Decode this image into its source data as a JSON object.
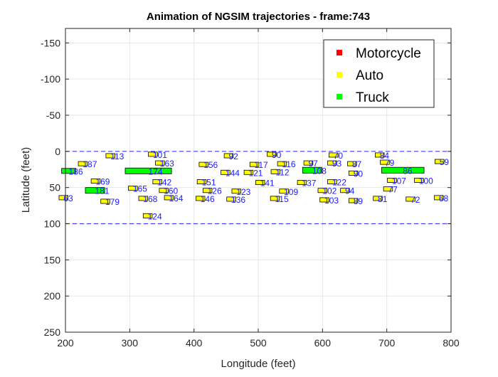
{
  "chart_data": {
    "type": "scatter",
    "title": "Animation of NGSIM trajectories - frame:743",
    "xlabel": "Longitude (feet)",
    "ylabel": "Latitude (feet)",
    "xlim": [
      200,
      800
    ],
    "ylim": [
      -170,
      250
    ],
    "y_direction": "reversed",
    "x_ticks": [
      200,
      300,
      400,
      500,
      600,
      700,
      800
    ],
    "y_ticks": [
      -150,
      -100,
      -50,
      0,
      50,
      100,
      150,
      200,
      250
    ],
    "x_tick_labels": [
      "200",
      "300",
      "400",
      "500",
      "600",
      "700",
      "800"
    ],
    "y_tick_labels": [
      "-150",
      "-100",
      "-50",
      "0",
      "50",
      "100",
      "150",
      "200",
      "250"
    ],
    "grid": true,
    "legend_position": "top-right",
    "lane_boundaries": [
      0,
      100
    ],
    "boundary_color": "#4040ff",
    "label_color": "#1a1aff",
    "legend": [
      {
        "label": "Motorcycle",
        "color": "#ff0000"
      },
      {
        "label": "Auto",
        "color": "#ffff00"
      },
      {
        "label": "Truck",
        "color": "#00ff00"
      }
    ],
    "vehicles": [
      {
        "id": "113",
        "type": "Auto",
        "x": 270,
        "y": 6,
        "len": 14,
        "wid": 6
      },
      {
        "id": "101",
        "type": "Auto",
        "x": 336,
        "y": 4,
        "len": 14,
        "wid": 6
      },
      {
        "id": "92",
        "type": "Auto",
        "x": 454,
        "y": 6,
        "len": 14,
        "wid": 6
      },
      {
        "id": "90",
        "type": "Auto",
        "x": 521,
        "y": 4,
        "len": 14,
        "wid": 6
      },
      {
        "id": "70",
        "type": "Auto",
        "x": 617,
        "y": 5,
        "len": 14,
        "wid": 6
      },
      {
        "id": "84",
        "type": "Auto",
        "x": 689,
        "y": 5,
        "len": 14,
        "wid": 6
      },
      {
        "id": "187",
        "type": "Auto",
        "x": 227,
        "y": 17,
        "len": 14,
        "wid": 6
      },
      {
        "id": "163",
        "type": "Auto",
        "x": 347,
        "y": 16,
        "len": 14,
        "wid": 6
      },
      {
        "id": "156",
        "type": "Auto",
        "x": 415,
        "y": 18,
        "len": 14,
        "wid": 6
      },
      {
        "id": "117",
        "type": "Auto",
        "x": 494,
        "y": 18,
        "len": 14,
        "wid": 6
      },
      {
        "id": "116",
        "type": "Auto",
        "x": 537,
        "y": 17,
        "len": 14,
        "wid": 6
      },
      {
        "id": "97",
        "type": "Auto",
        "x": 578,
        "y": 16,
        "len": 14,
        "wid": 6
      },
      {
        "id": "93",
        "type": "Auto",
        "x": 615,
        "y": 16,
        "len": 14,
        "wid": 6
      },
      {
        "id": "87",
        "type": "Auto",
        "x": 646,
        "y": 17,
        "len": 14,
        "wid": 6
      },
      {
        "id": "79",
        "type": "Auto",
        "x": 697,
        "y": 15,
        "len": 14,
        "wid": 6
      },
      {
        "id": "59",
        "type": "Auto",
        "x": 782,
        "y": 14,
        "len": 14,
        "wid": 6
      },
      {
        "id": "186",
        "type": "Truck",
        "x": 205,
        "y": 27,
        "len": 22,
        "wid": 7
      },
      {
        "id": "174",
        "type": "Truck",
        "x": 329,
        "y": 27,
        "len": 72,
        "wid": 8
      },
      {
        "id": "144",
        "type": "Auto",
        "x": 449,
        "y": 29,
        "len": 14,
        "wid": 6
      },
      {
        "id": "121",
        "type": "Auto",
        "x": 485,
        "y": 29,
        "len": 14,
        "wid": 6
      },
      {
        "id": "112",
        "type": "Auto",
        "x": 527,
        "y": 28,
        "len": 14,
        "wid": 6
      },
      {
        "id": "108",
        "type": "Truck",
        "x": 584,
        "y": 26,
        "len": 30,
        "wid": 8
      },
      {
        "id": "90",
        "type": "Auto",
        "x": 648,
        "y": 30,
        "len": 14,
        "wid": 6
      },
      {
        "id": "86",
        "type": "Truck",
        "x": 725,
        "y": 26,
        "len": 66,
        "wid": 8
      },
      {
        "id": "169",
        "type": "Auto",
        "x": 247,
        "y": 41,
        "len": 14,
        "wid": 6
      },
      {
        "id": "142",
        "type": "Auto",
        "x": 343,
        "y": 42,
        "len": 14,
        "wid": 6
      },
      {
        "id": "151",
        "type": "Auto",
        "x": 412,
        "y": 42,
        "len": 14,
        "wid": 6
      },
      {
        "id": "141",
        "type": "Auto",
        "x": 503,
        "y": 43,
        "len": 14,
        "wid": 6
      },
      {
        "id": "137",
        "type": "Auto",
        "x": 568,
        "y": 43,
        "len": 14,
        "wid": 6
      },
      {
        "id": "122",
        "type": "Auto",
        "x": 615,
        "y": 42,
        "len": 14,
        "wid": 6
      },
      {
        "id": "107",
        "type": "Auto",
        "x": 708,
        "y": 40,
        "len": 14,
        "wid": 6
      },
      {
        "id": "100",
        "type": "Auto",
        "x": 750,
        "y": 40,
        "len": 14,
        "wid": 6
      },
      {
        "id": "181",
        "type": "Truck",
        "x": 246,
        "y": 54,
        "len": 30,
        "wid": 8
      },
      {
        "id": "165",
        "type": "Auto",
        "x": 305,
        "y": 51,
        "len": 14,
        "wid": 6
      },
      {
        "id": "160",
        "type": "Auto",
        "x": 353,
        "y": 54,
        "len": 14,
        "wid": 6
      },
      {
        "id": "126",
        "type": "Auto",
        "x": 421,
        "y": 54,
        "len": 14,
        "wid": 6
      },
      {
        "id": "123",
        "type": "Auto",
        "x": 466,
        "y": 55,
        "len": 14,
        "wid": 6
      },
      {
        "id": "109",
        "type": "Auto",
        "x": 540,
        "y": 55,
        "len": 14,
        "wid": 6
      },
      {
        "id": "102",
        "type": "Auto",
        "x": 600,
        "y": 54,
        "len": 14,
        "wid": 6
      },
      {
        "id": "94",
        "type": "Auto",
        "x": 635,
        "y": 54,
        "len": 14,
        "wid": 6
      },
      {
        "id": "77",
        "type": "Auto",
        "x": 702,
        "y": 52,
        "len": 14,
        "wid": 6
      },
      {
        "id": "164",
        "type": "Auto",
        "x": 361,
        "y": 64,
        "len": 14,
        "wid": 6
      },
      {
        "id": "168",
        "type": "Auto",
        "x": 321,
        "y": 65,
        "len": 14,
        "wid": 6
      },
      {
        "id": "146",
        "type": "Auto",
        "x": 410,
        "y": 65,
        "len": 14,
        "wid": 6
      },
      {
        "id": "136",
        "type": "Auto",
        "x": 458,
        "y": 66,
        "len": 14,
        "wid": 6
      },
      {
        "id": "115",
        "type": "Auto",
        "x": 526,
        "y": 65,
        "len": 14,
        "wid": 6
      },
      {
        "id": "103",
        "type": "Auto",
        "x": 603,
        "y": 67,
        "len": 14,
        "wid": 6
      },
      {
        "id": "89",
        "type": "Auto",
        "x": 648,
        "y": 68,
        "len": 14,
        "wid": 6
      },
      {
        "id": "81",
        "type": "Auto",
        "x": 686,
        "y": 65,
        "len": 14,
        "wid": 6
      },
      {
        "id": "72",
        "type": "Auto",
        "x": 737,
        "y": 66,
        "len": 14,
        "wid": 6
      },
      {
        "id": "68",
        "type": "Auto",
        "x": 781,
        "y": 64,
        "len": 14,
        "wid": 6
      },
      {
        "id": "63",
        "type": "Auto",
        "x": 197,
        "y": 64,
        "len": 14,
        "wid": 6
      },
      {
        "id": "179",
        "type": "Auto",
        "x": 262,
        "y": 69,
        "len": 14,
        "wid": 6
      },
      {
        "id": "124",
        "type": "Auto",
        "x": 328,
        "y": 89,
        "len": 14,
        "wid": 6
      }
    ]
  }
}
